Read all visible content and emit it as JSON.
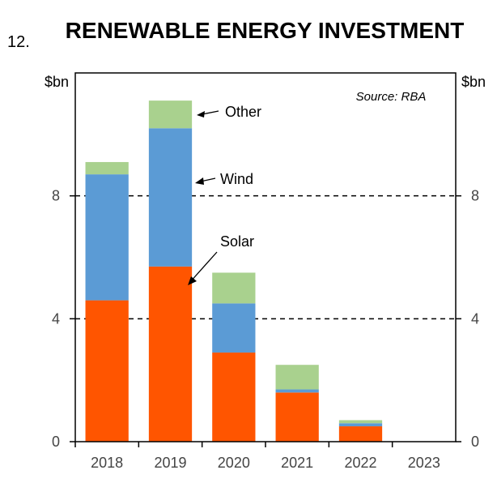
{
  "header": {
    "chart_number": "12.",
    "title": "RENEWABLE ENERGY INVESTMENT"
  },
  "source": "Source: RBA",
  "colors": {
    "solar": "#ff5500",
    "wind": "#5b9bd5",
    "other": "#a9d18e",
    "gridline": "#000000",
    "axis": "#000000",
    "tick_text": "#444444"
  },
  "chart_data": {
    "type": "bar",
    "stacked": true,
    "title": "RENEWABLE ENERGY INVESTMENT",
    "xlabel": "",
    "ylabel": "$bn",
    "ylabel_right": "$bn",
    "ylim": [
      0,
      12
    ],
    "yticks": [
      0,
      4,
      8
    ],
    "gridlines": "dashed at 4 and 8",
    "categories": [
      "2018",
      "2019",
      "2020",
      "2021",
      "2022",
      "2023"
    ],
    "series": [
      {
        "name": "Solar",
        "color": "#ff5500",
        "values": [
          4.6,
          5.7,
          2.9,
          1.6,
          0.5,
          0
        ]
      },
      {
        "name": "Wind",
        "color": "#5b9bd5",
        "values": [
          4.1,
          4.5,
          1.6,
          0.1,
          0.1,
          0
        ]
      },
      {
        "name": "Other",
        "color": "#a9d18e",
        "values": [
          0.4,
          0.9,
          1.0,
          0.8,
          0.1,
          0
        ]
      }
    ],
    "annotations": [
      {
        "text": "Other",
        "series": "Other"
      },
      {
        "text": "Wind",
        "series": "Wind"
      },
      {
        "text": "Solar",
        "series": "Solar"
      }
    ]
  }
}
